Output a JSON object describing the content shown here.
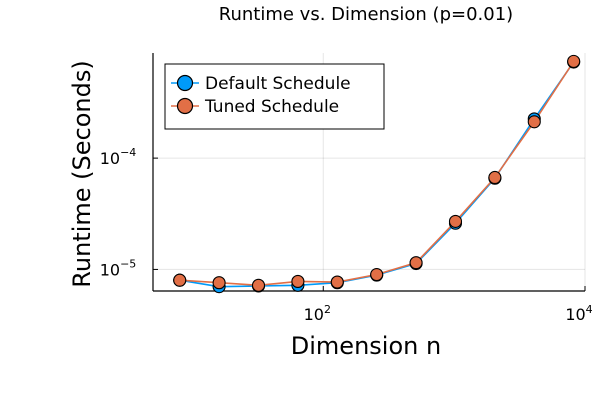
{
  "chart_data": {
    "type": "line",
    "title": "Runtime vs. Dimension (p=0.01)",
    "xlabel": "Dimension n",
    "ylabel": "Runtime (Seconds)",
    "xscale": "log",
    "yscale": "log",
    "xlim": [
      5,
      10000
    ],
    "ylim": [
      6.4e-06,
      0.00088
    ],
    "grid": true,
    "legend": "top-left",
    "x": [
      8,
      16,
      32,
      64,
      128,
      256,
      512,
      1024,
      2048,
      4096,
      8192
    ],
    "xticks": [
      {
        "value": 100,
        "base": "10",
        "exp": "2"
      },
      {
        "value": 10000,
        "base": "10",
        "exp": "4"
      }
    ],
    "yticks": [
      {
        "value": 1e-05,
        "base": "10",
        "exp": "−5"
      },
      {
        "value": 0.0001,
        "base": "10",
        "exp": "−4"
      }
    ],
    "series": [
      {
        "name": "Default Schedule",
        "color": "#009af9",
        "values": [
          8e-06,
          7e-06,
          7.1e-06,
          7.2e-06,
          7.6e-06,
          8.9e-06,
          1.13e-05,
          2.6e-05,
          6.6e-05,
          0.000225,
          0.00073
        ]
      },
      {
        "name": "Tuned Schedule",
        "color": "#e26f46",
        "values": [
          8e-06,
          7.6e-06,
          7.2e-06,
          7.8e-06,
          7.7e-06,
          9e-06,
          1.15e-05,
          2.7e-05,
          6.7e-05,
          0.000212,
          0.00074
        ]
      }
    ]
  }
}
